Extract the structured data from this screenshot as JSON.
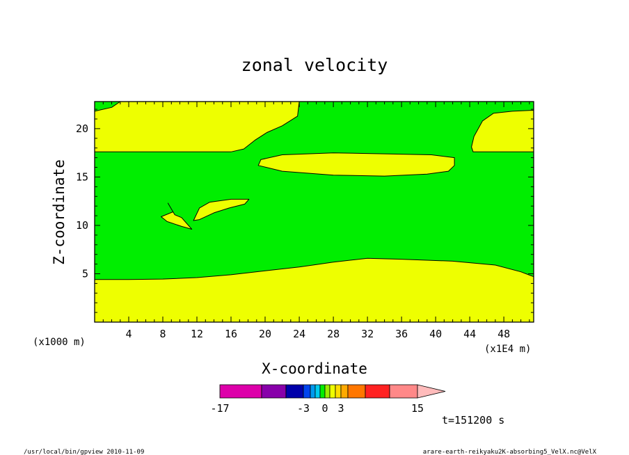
{
  "chart_data": {
    "type": "contour",
    "title": "zonal velocity",
    "xlabel": "X-coordinate",
    "ylabel": "Z-coordinate",
    "x_unit_left": "(x1000 m)",
    "x_unit_right": "(x1E4 m)",
    "xlim": [
      0,
      51.5
    ],
    "ylim": [
      0,
      22.8
    ],
    "x_ticks": [
      "4",
      "8",
      "12",
      "16",
      "20",
      "24",
      "28",
      "32",
      "36",
      "40",
      "44",
      "48"
    ],
    "y_ticks": [
      "5",
      "10",
      "15",
      "20"
    ],
    "fill_colors": {
      "background_level": "#00ee00",
      "positive_level": "#eeff00"
    },
    "regions": [
      {
        "level": "positive",
        "points": [
          [
            0,
            0
          ],
          [
            51.5,
            0
          ],
          [
            51.5,
            4.7
          ],
          [
            50,
            5.2
          ],
          [
            47,
            5.9
          ],
          [
            42,
            6.3
          ],
          [
            36,
            6.5
          ],
          [
            32,
            6.6
          ],
          [
            28,
            6.2
          ],
          [
            24,
            5.7
          ],
          [
            20,
            5.3
          ],
          [
            16,
            4.9
          ],
          [
            12,
            4.6
          ],
          [
            8,
            4.45
          ],
          [
            4,
            4.4
          ],
          [
            0,
            4.4
          ]
        ]
      },
      {
        "level": "positive",
        "points": [
          [
            0,
            17.6
          ],
          [
            16,
            17.6
          ],
          [
            17.5,
            17.9
          ],
          [
            18.8,
            18.8
          ],
          [
            20.2,
            19.6
          ],
          [
            22,
            20.3
          ],
          [
            23.8,
            21.3
          ],
          [
            24,
            22.8
          ],
          [
            3,
            22.8
          ],
          [
            2,
            22.2
          ],
          [
            0,
            21.8
          ]
        ]
      },
      {
        "level": "positive",
        "points": [
          [
            19.5,
            16.8
          ],
          [
            22,
            17.3
          ],
          [
            28,
            17.5
          ],
          [
            34,
            17.4
          ],
          [
            39.5,
            17.3
          ],
          [
            42.2,
            17.0
          ],
          [
            42.2,
            16.2
          ],
          [
            41.5,
            15.6
          ],
          [
            39,
            15.3
          ],
          [
            34,
            15.1
          ],
          [
            28,
            15.2
          ],
          [
            22,
            15.6
          ],
          [
            19.2,
            16.2
          ]
        ]
      },
      {
        "level": "positive",
        "points": [
          [
            44.2,
            18.1
          ],
          [
            44.5,
            19.2
          ],
          [
            45.5,
            20.8
          ],
          [
            46.8,
            21.6
          ],
          [
            49,
            21.8
          ],
          [
            51.5,
            21.9
          ],
          [
            51.5,
            17.6
          ],
          [
            44.4,
            17.6
          ]
        ]
      },
      {
        "level": "positive",
        "points": [
          [
            11.6,
            10.5
          ],
          [
            12.3,
            11.8
          ],
          [
            13.5,
            12.4
          ],
          [
            16,
            12.7
          ],
          [
            18.1,
            12.7
          ],
          [
            17.6,
            12.2
          ],
          [
            15.8,
            11.8
          ],
          [
            14,
            11.3
          ],
          [
            12.3,
            10.6
          ]
        ]
      },
      {
        "level": "positive",
        "points": [
          [
            8.6,
            12.3
          ],
          [
            9.2,
            11.4
          ],
          [
            7.8,
            10.9
          ],
          [
            8.5,
            10.4
          ],
          [
            10.2,
            9.9
          ],
          [
            11.4,
            9.6
          ],
          [
            10.2,
            10.8
          ],
          [
            9.4,
            11.1
          ]
        ]
      }
    ],
    "colorbar": {
      "colors": [
        "#dd00aa",
        "#8800aa",
        "#0000aa",
        "#0044ee",
        "#0099ee",
        "#00ccee",
        "#00ee00",
        "#99ee00",
        "#eeff00",
        "#ffdd00",
        "#ffaa00",
        "#ff7700",
        "#ff2222",
        "#ff8888"
      ],
      "widths": [
        60,
        35,
        25,
        10,
        7,
        7,
        7,
        7,
        8,
        8,
        10,
        25,
        35,
        40
      ],
      "overflow_color": "#ffbbbb",
      "labels": [
        {
          "text": "-17",
          "at": "segment-0-start"
        },
        {
          "text": "-3",
          "at": "segment-3-start"
        },
        {
          "text": "0",
          "at": "segment-7-start"
        },
        {
          "text": "3",
          "at": "segment-10-start"
        },
        {
          "text": "15",
          "at": "segment-13-end"
        }
      ]
    },
    "time_label": "t=151200 s",
    "footer_left": "/usr/local/bin/gpview  2010-11-09",
    "footer_right": "arare-earth-reikyaku2K-absorbing5_VelX.nc@VelX"
  }
}
